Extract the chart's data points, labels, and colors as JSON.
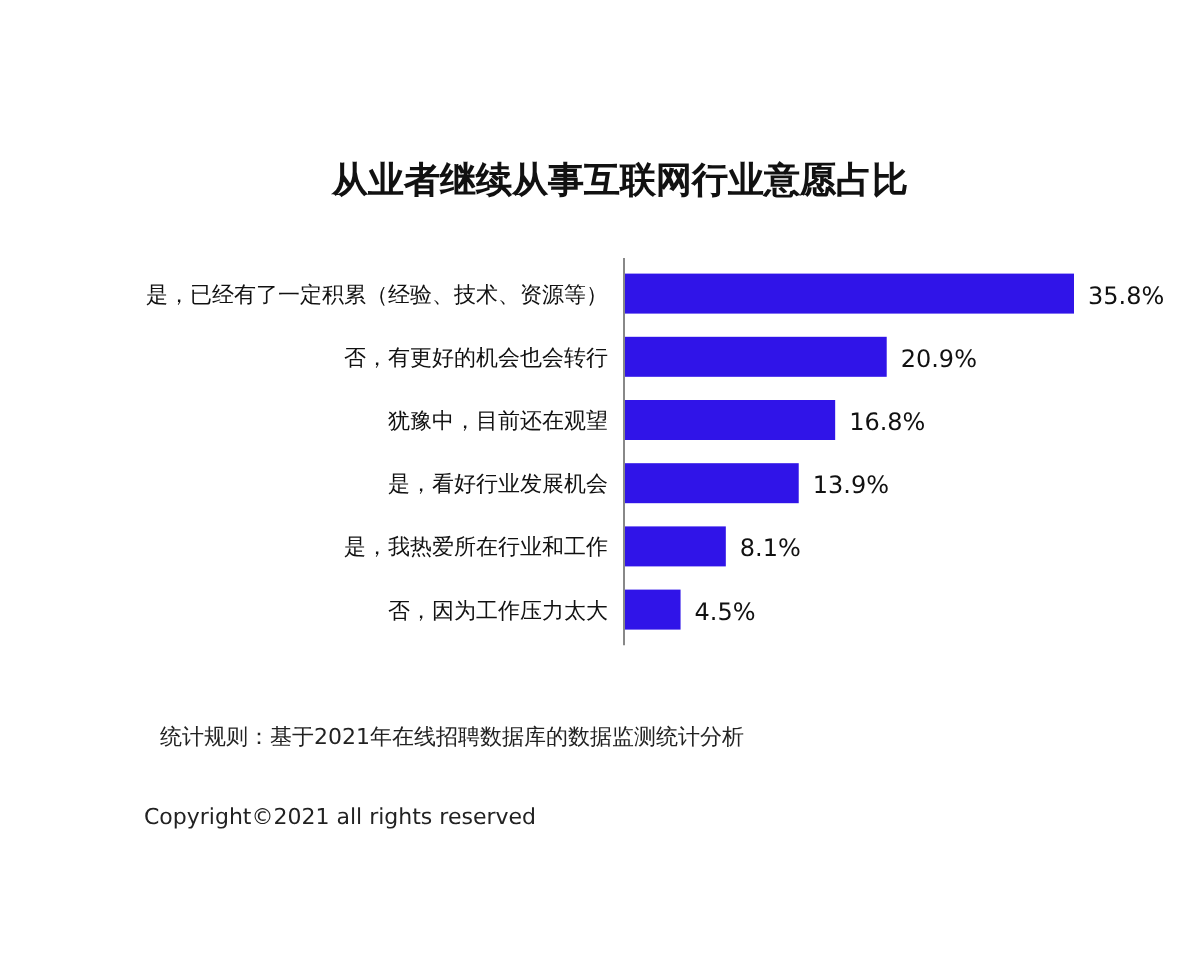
{
  "chart_data": {
    "type": "bar",
    "orientation": "horizontal",
    "title": "从业者继续从事互联网行业意愿占比",
    "categories": [
      "是，已经有了一定积累（经验、技术、资源等）",
      "否，有更好的机会也会转行",
      "犹豫中，目前还在观望",
      "是，看好行业发展机会",
      "是，我热爱所在行业和工作",
      "否，因为工作压力太大"
    ],
    "values": [
      35.8,
      20.9,
      16.8,
      13.9,
      8.1,
      4.5
    ],
    "value_labels": [
      "35.8%",
      "20.9%",
      "16.8%",
      "13.9%",
      "8.1%",
      "4.5%"
    ],
    "color": "#3014e8",
    "annotations": [
      "统计规则：基于2021年在线招聘数据库的数据监测统计分析",
      "Copyright©2021 all rights reserved"
    ]
  }
}
